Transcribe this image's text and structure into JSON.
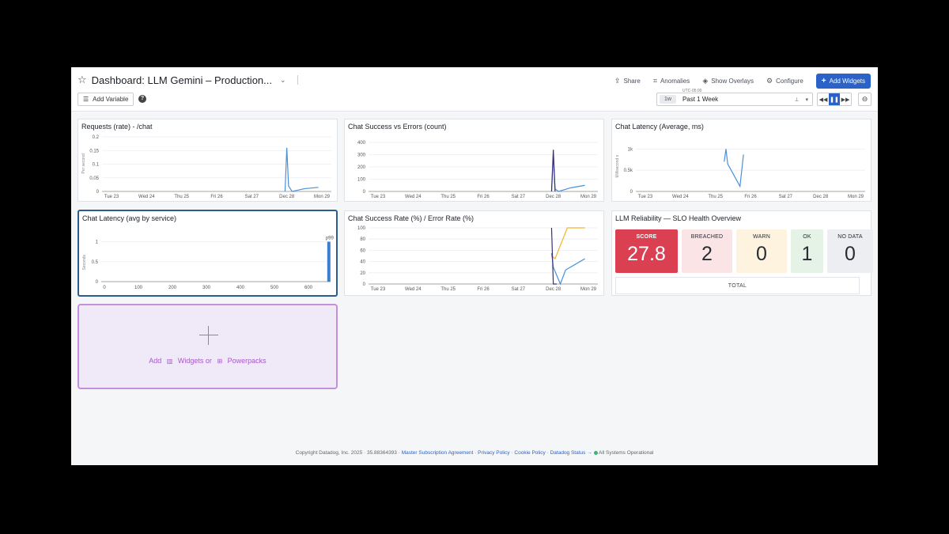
{
  "header": {
    "title": "Dashboard: LLM Gemini – Production...",
    "actions": [
      {
        "label": "Share",
        "icon": "share-icon"
      },
      {
        "label": "Anomalies",
        "icon": "anomalies-icon"
      },
      {
        "label": "Show Overlays",
        "icon": "layers-icon"
      },
      {
        "label": "Configure",
        "icon": "gear-icon"
      }
    ],
    "add_widgets_label": "Add Widgets",
    "add_variable_label": "Add Variable",
    "timezone": "UTC-05:00",
    "time_badge": "1w",
    "time_label": "Past 1 Week"
  },
  "widgets": {
    "requests": {
      "title": "Requests (rate) - /chat",
      "y_unit": "Per second"
    },
    "success_errors": {
      "title": "Chat Success vs Errors (count)"
    },
    "latency_avg": {
      "title": "Chat Latency (Average, ms)",
      "y_unit": "Millisecond s"
    },
    "latency_service": {
      "title": "Chat Latency (avg by service)",
      "y_unit": "Seconds",
      "bar_label": "p99"
    },
    "success_rate": {
      "title": "Chat Success Rate (%) / Error Rate (%)"
    },
    "slo": {
      "title": "LLM Reliability — SLO Health Overview",
      "tiles": [
        {
          "label": "SCORE",
          "value": "27.8"
        },
        {
          "label": "BREACHED",
          "value": "2"
        },
        {
          "label": "WARN",
          "value": "0"
        },
        {
          "label": "OK",
          "value": "1"
        },
        {
          "label": "NO DATA",
          "value": "0"
        }
      ],
      "total_label": "TOTAL"
    }
  },
  "add_box": {
    "add": "Add",
    "widgets": "Widgets or",
    "powerpacks": "Powerpacks"
  },
  "footer": {
    "copyright": "Copyright Datadog, Inc. 2025 · 35.88364393 ·",
    "msa": "Master Subscription Agreement",
    "privacy": "Privacy Policy",
    "cookie": "Cookie Policy",
    "status": "Datadog Status →",
    "operational": "All Systems Operational"
  },
  "chart_data": [
    {
      "type": "line",
      "title": "Requests (rate) - /chat",
      "ylabel": "Per second",
      "x_ticks": [
        "Tue 23",
        "Wed 24",
        "Thu 25",
        "Fri 26",
        "Sat 27",
        "Dec 28",
        "Mon 29"
      ],
      "y_ticks": [
        "0.2",
        "0.15",
        "0.1",
        "0.05",
        "0"
      ],
      "ylim": [
        0,
        0.2
      ],
      "series": [
        {
          "color": "#4a90d9",
          "x": [
            5.35,
            5.4,
            5.45,
            5.55,
            5.9,
            6.3
          ],
          "y": [
            0,
            0.16,
            0.02,
            0,
            0.01,
            0.015
          ]
        }
      ]
    },
    {
      "type": "line",
      "title": "Chat Success vs Errors (count)",
      "x_ticks": [
        "Tue 23",
        "Wed 24",
        "Thu 25",
        "Fri 26",
        "Sat 27",
        "Dec 28",
        "Mon 29"
      ],
      "y_ticks": [
        "400",
        "300",
        "200",
        "100",
        "0"
      ],
      "ylim": [
        0,
        400
      ],
      "series": [
        {
          "color": "#4a90d9",
          "x": [
            5.35,
            5.4,
            5.45,
            5.55,
            5.9,
            6.3
          ],
          "y": [
            0,
            300,
            20,
            0,
            30,
            50
          ]
        },
        {
          "color": "#3b2f7a",
          "x": [
            5.35,
            5.4,
            5.45
          ],
          "y": [
            0,
            340,
            0
          ]
        }
      ]
    },
    {
      "type": "line",
      "title": "Chat Latency (Average, ms)",
      "ylabel": "Millisecond s",
      "x_ticks": [
        "Tue 23",
        "Wed 24",
        "Thu 25",
        "Fri 26",
        "Sat 27",
        "Dec 28",
        "Mon 29"
      ],
      "y_ticks": [
        "1k",
        "0.5k",
        "0"
      ],
      "ylim": [
        0,
        1100
      ],
      "series": [
        {
          "color": "#4a90d9",
          "x": [
            2.65,
            2.7,
            2.75,
            3.1,
            3.2
          ],
          "y": [
            700,
            1000,
            650,
            120,
            870
          ]
        }
      ]
    },
    {
      "type": "bar",
      "title": "Chat Latency (avg by service)",
      "ylabel": "Seconds",
      "x_ticks": [
        "0",
        "100",
        "200",
        "300",
        "400",
        "500",
        "600"
      ],
      "y_ticks": [
        "1",
        "0.5",
        "0"
      ],
      "ylim": [
        0,
        1.05
      ],
      "bar": {
        "x": 660,
        "y": 1.0,
        "label": "p99"
      }
    },
    {
      "type": "line",
      "title": "Chat Success Rate (%) / Error Rate (%)",
      "x_ticks": [
        "Tue 23",
        "Wed 24",
        "Thu 25",
        "Fri 26",
        "Sat 27",
        "Dec 28",
        "Mon 29"
      ],
      "y_ticks": [
        "100",
        "80",
        "60",
        "40",
        "20",
        "0"
      ],
      "ylim": [
        0,
        100
      ],
      "series": [
        {
          "color": "#f0b52b",
          "x": [
            5.35,
            5.45,
            5.8,
            6.3
          ],
          "y": [
            50,
            45,
            100,
            100
          ]
        },
        {
          "color": "#4a90d9",
          "x": [
            5.35,
            5.4,
            5.6,
            5.75,
            6.3
          ],
          "y": [
            55,
            30,
            0,
            25,
            45
          ]
        },
        {
          "color": "#3b2f7a",
          "x": [
            5.35,
            5.4,
            5.5
          ],
          "y": [
            100,
            0,
            0
          ]
        }
      ]
    }
  ]
}
